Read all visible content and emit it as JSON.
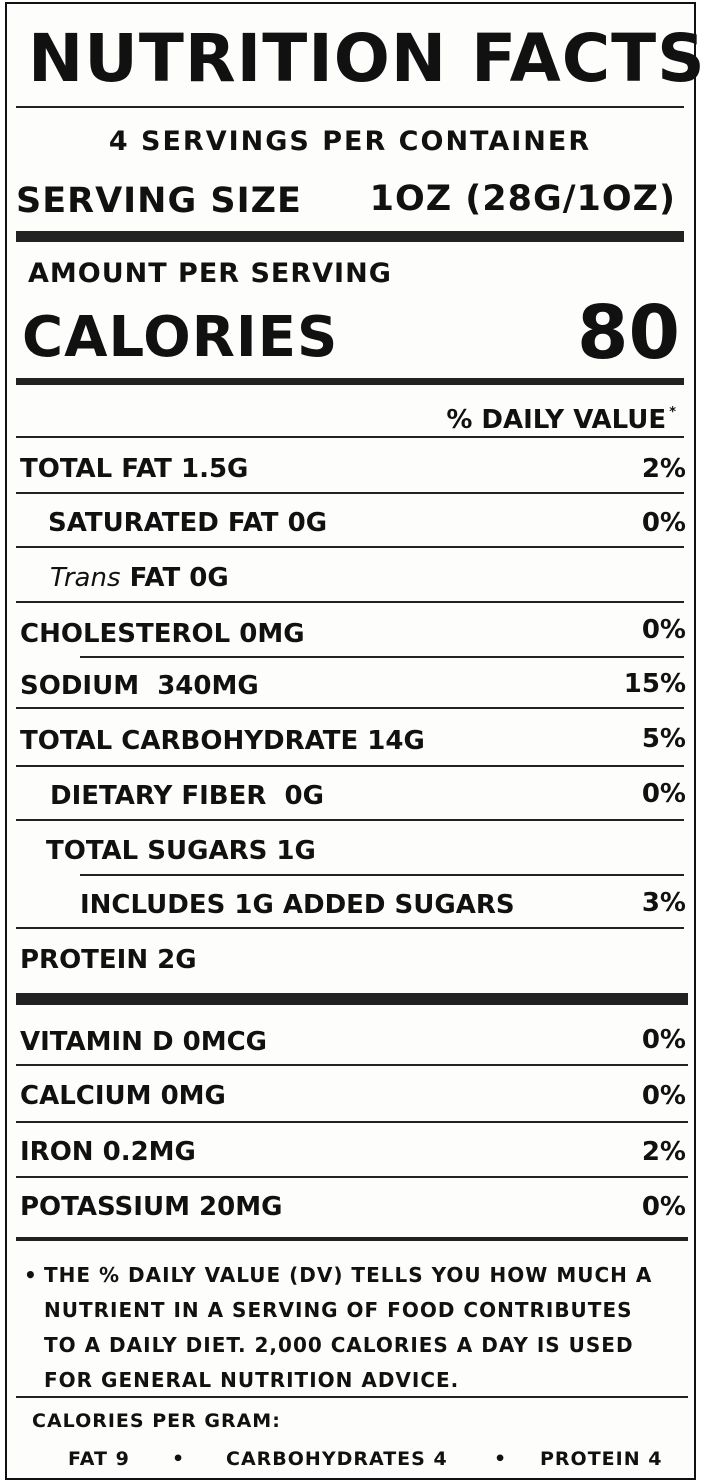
{
  "header": {
    "title": "NUTRITION FACTS",
    "servings_per_container": "4 SERVINGS PER CONTAINER",
    "serving_size_label": "SERVING SIZE",
    "serving_size_value": "1OZ (28G/1OZ)"
  },
  "calories": {
    "amount_label": "AMOUNT PER SERVING",
    "label": "CALORIES",
    "value": "80"
  },
  "daily_value_header": "% DAILY VALUE",
  "daily_value_marker": "*",
  "nutrients": [
    {
      "name": "TOTAL FAT",
      "amount": "1.5G",
      "pct": "2%"
    },
    {
      "name": "SATURATED FAT",
      "amount": "0G",
      "pct": "0%"
    },
    {
      "name_italic": "Trans",
      "name": "FAT",
      "amount": "0G",
      "pct": ""
    },
    {
      "name": "CHOLESTEROL",
      "amount": "0MG",
      "pct": "0%"
    },
    {
      "name": "SODIUM",
      "amount": "340MG",
      "pct": "15%"
    },
    {
      "name": "TOTAL CARBOHYDRATE",
      "amount": "14G",
      "pct": "5%"
    },
    {
      "name": "DIETARY FIBER",
      "amount": "0G",
      "pct": "0%"
    },
    {
      "name": "TOTAL SUGARS",
      "amount": "1G",
      "pct": ""
    },
    {
      "name": "INCLUDES 1G ADDED SUGARS",
      "amount": "",
      "pct": "3%"
    },
    {
      "name": "PROTEIN",
      "amount": "2G",
      "pct": ""
    }
  ],
  "vitamins": [
    {
      "name": "VITAMIN D",
      "amount": "0MCG",
      "pct": "0%"
    },
    {
      "name": "CALCIUM",
      "amount": "0MG",
      "pct": "0%"
    },
    {
      "name": "IRON",
      "amount": "0.2MG",
      "pct": "2%"
    },
    {
      "name": "POTASSIUM",
      "amount": "20MG",
      "pct": "0%"
    }
  ],
  "footnote": {
    "bullet": "•",
    "lines": [
      "THE % DAILY VALUE (DV) TELLS YOU HOW MUCH A",
      "NUTRIENT IN A SERVING OF FOOD CONTRIBUTES",
      "TO A DAILY DIET. 2,000 CALORIES A DAY IS USED",
      "FOR GENERAL NUTRITION ADVICE."
    ]
  },
  "calories_per_gram": {
    "label": "CALORIES PER GRAM:",
    "fat": "FAT 9",
    "carbohydrates": "CARBOHYDRATES 4",
    "protein": "PROTEIN 4",
    "separator": "•"
  }
}
